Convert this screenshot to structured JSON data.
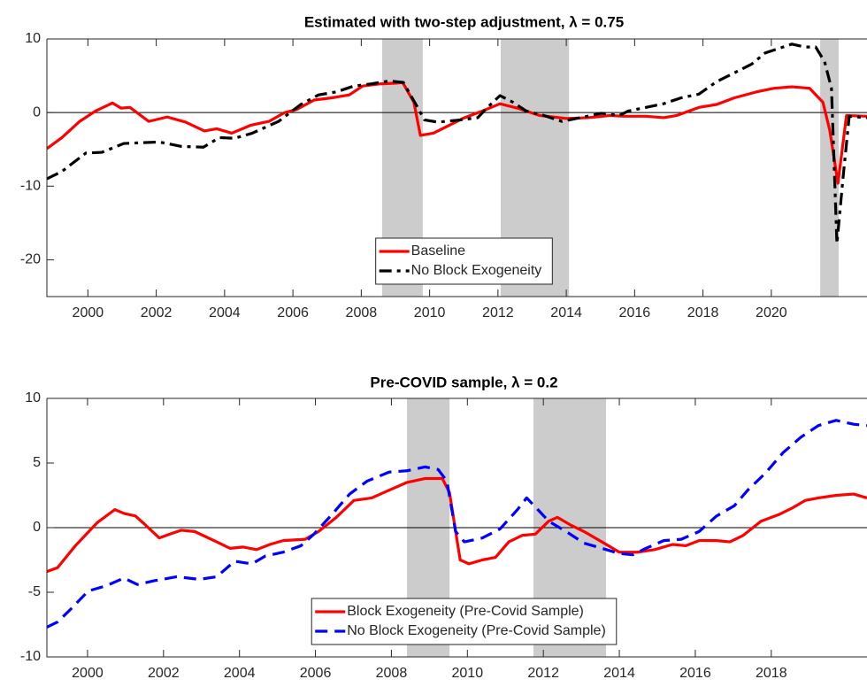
{
  "chart_data": [
    {
      "type": "line",
      "title": "Estimated with two-step adjustment,  λ = 0.75",
      "xlim": [
        1998.8,
        2022.8
      ],
      "xticks": [
        2000,
        2002,
        2004,
        2006,
        2008,
        2010,
        2012,
        2014,
        2016,
        2018,
        2020
      ],
      "ylim": [
        -25,
        10
      ],
      "yticks": [
        -20,
        -10,
        0,
        10
      ],
      "shaded_regions": [
        [
          2008.61,
          2009.8
        ],
        [
          2012.08,
          2014.08
        ],
        [
          2021.43,
          2021.97
        ]
      ],
      "shade_color": "#cccccc",
      "zero_line": true,
      "legend": "lower center",
      "series": [
        {
          "name": "Baseline",
          "color": "#ff0000",
          "style": "solid",
          "x": [
            1998.8,
            1999.24,
            1999.76,
            2000.22,
            2000.72,
            2000.97,
            2001.23,
            2001.78,
            2002.32,
            2002.86,
            2003.41,
            2003.77,
            2004.21,
            2004.78,
            2005.3,
            2005.76,
            2006.1,
            2006.62,
            2007.14,
            2007.65,
            2008.04,
            2008.56,
            2009.03,
            2009.21,
            2009.54,
            2009.73,
            2010.11,
            2010.63,
            2011.02,
            2011.54,
            2012.06,
            2012.57,
            2013.22,
            2014.0,
            2014.64,
            2015.29,
            2015.68,
            2016.33,
            2016.85,
            2017.23,
            2017.88,
            2018.4,
            2018.92,
            2019.56,
            2020.08,
            2020.6,
            2021.12,
            2021.51,
            2021.71,
            2021.95,
            2022.2,
            2022.8
          ],
          "values": [
            -4.9,
            -3.4,
            -1.2,
            0.2,
            1.3,
            0.6,
            0.7,
            -1.2,
            -0.6,
            -1.3,
            -2.5,
            -2.2,
            -2.8,
            -1.7,
            -1.2,
            0,
            0.4,
            1.7,
            2.0,
            2.4,
            3.6,
            3.9,
            4.0,
            4.1,
            1.4,
            -3.1,
            -2.8,
            -1.6,
            -0.7,
            0.2,
            1.2,
            0.6,
            -0.4,
            -0.8,
            -0.7,
            -0.4,
            -0.5,
            -0.5,
            -0.7,
            -0.4,
            0.7,
            1.1,
            2.0,
            2.8,
            3.3,
            3.5,
            3.3,
            1.4,
            -2.4,
            -9.6,
            -0.4,
            -0.5
          ]
        },
        {
          "name": "No Block Exogeneity",
          "color": "#000000",
          "style": "dashdot",
          "x": [
            1998.8,
            1999.24,
            1999.94,
            2000.41,
            2001.05,
            2001.57,
            2002.09,
            2002.74,
            2003.38,
            2003.85,
            2004.29,
            2004.81,
            2005.58,
            2006.23,
            2006.75,
            2007.27,
            2007.78,
            2008.3,
            2008.82,
            2009.23,
            2009.6,
            2009.85,
            2010.24,
            2010.89,
            2011.41,
            2011.67,
            2012.06,
            2012.44,
            2012.83,
            2013.35,
            2013.87,
            2014.52,
            2015.03,
            2015.55,
            2015.81,
            2016.33,
            2016.85,
            2017.36,
            2017.88,
            2018.4,
            2018.92,
            2019.43,
            2019.82,
            2020.21,
            2020.6,
            2020.99,
            2021.3,
            2021.56,
            2021.76,
            2021.92,
            2022.1,
            2022.28,
            2022.8
          ],
          "values": [
            -9,
            -8,
            -5.5,
            -5.4,
            -4.2,
            -4.1,
            -4.0,
            -4.6,
            -4.7,
            -3.4,
            -3.5,
            -2.8,
            -1.2,
            1.1,
            2.4,
            2.8,
            3.6,
            3.9,
            4.3,
            4.1,
            1.1,
            -1.0,
            -1.3,
            -1.0,
            -0.7,
            0.6,
            2.3,
            1.4,
            0.2,
            -0.4,
            -1.2,
            -0.6,
            -0.1,
            -0.4,
            0.2,
            0.7,
            1.2,
            2.0,
            2.5,
            4.2,
            5.4,
            6.6,
            8.1,
            8.7,
            9.3,
            8.9,
            8.9,
            6.9,
            3.3,
            -17.8,
            -8.8,
            -0.5,
            -0.7
          ]
        }
      ]
    },
    {
      "type": "line",
      "title": "Pre-COVID sample,  λ = 0.2",
      "xlim": [
        1998.93,
        2020.52
      ],
      "xticks": [
        2000,
        2002,
        2004,
        2006,
        2008,
        2010,
        2012,
        2014,
        2016,
        2018
      ],
      "ylim": [
        -10,
        10
      ],
      "yticks": [
        -10,
        -5,
        0,
        5,
        10
      ],
      "shaded_regions": [
        [
          2008.41,
          2009.53
        ],
        [
          2011.74,
          2013.65
        ]
      ],
      "shade_color": "#cccccc",
      "zero_line": true,
      "legend": "lower center",
      "series": [
        {
          "name": "Block Exogeneity (Pre-Covid Sample)",
          "color": "#ff0000",
          "style": "solid",
          "x": [
            1998.93,
            1999.21,
            1999.68,
            2000.26,
            2000.72,
            2000.96,
            2001.26,
            2001.49,
            2001.89,
            2002.17,
            2002.47,
            2002.82,
            2003.4,
            2003.75,
            2004.1,
            2004.45,
            2004.8,
            2005.15,
            2005.73,
            2006.08,
            2006.55,
            2007.01,
            2007.48,
            2007.94,
            2008.41,
            2008.88,
            2009.34,
            2009.53,
            2009.81,
            2010.04,
            2010.39,
            2010.74,
            2011.09,
            2011.44,
            2011.79,
            2012.14,
            2012.37,
            2012.72,
            2013.07,
            2013.54,
            2014.0,
            2014.47,
            2014.93,
            2015.4,
            2015.75,
            2016.1,
            2016.56,
            2016.91,
            2017.26,
            2017.73,
            2018.19,
            2018.54,
            2018.89,
            2019.24,
            2019.71,
            2020.17,
            2020.52
          ],
          "values": [
            -3.4,
            -3.1,
            -1.4,
            0.4,
            1.4,
            1.1,
            0.9,
            0.3,
            -0.8,
            -0.5,
            -0.2,
            -0.3,
            -1.1,
            -1.6,
            -1.5,
            -1.7,
            -1.3,
            -1.0,
            -0.9,
            -0.3,
            0.8,
            2.1,
            2.3,
            2.9,
            3.5,
            3.8,
            3.8,
            2.7,
            -2.5,
            -2.8,
            -2.5,
            -2.3,
            -1.1,
            -0.6,
            -0.5,
            0.5,
            0.8,
            0.2,
            -0.3,
            -1.1,
            -1.9,
            -1.9,
            -1.7,
            -1.3,
            -1.4,
            -1.0,
            -1.0,
            -1.1,
            -0.6,
            0.5,
            1.0,
            1.5,
            2.1,
            2.3,
            2.5,
            2.6,
            2.3
          ]
        },
        {
          "name": "No Block Exogeneity (Pre-Covid Sample)",
          "color": "#0000ff",
          "style": "dashed",
          "x": [
            1998.93,
            1999.21,
            1999.56,
            2000.02,
            2000.49,
            2000.96,
            2001.31,
            2001.77,
            2002.35,
            2002.94,
            2003.4,
            2003.87,
            2004.33,
            2004.68,
            2005.15,
            2005.62,
            2005.96,
            2006.43,
            2006.9,
            2007.36,
            2007.94,
            2008.41,
            2008.88,
            2009.23,
            2009.46,
            2009.69,
            2009.92,
            2010.39,
            2010.86,
            2011.32,
            2011.56,
            2011.79,
            2012.14,
            2012.6,
            2013.07,
            2013.54,
            2014.0,
            2014.35,
            2014.7,
            2015.17,
            2015.63,
            2016.1,
            2016.56,
            2017.03,
            2017.38,
            2017.84,
            2018.31,
            2018.78,
            2019.24,
            2019.71,
            2020.17,
            2020.52
          ],
          "values": [
            -7.7,
            -7.3,
            -6.3,
            -4.9,
            -4.5,
            -3.9,
            -4.4,
            -4.1,
            -3.8,
            -4.0,
            -3.8,
            -2.6,
            -2.8,
            -2.2,
            -1.9,
            -1.4,
            -0.5,
            1.0,
            2.6,
            3.6,
            4.3,
            4.4,
            4.7,
            4.5,
            3.6,
            -0.3,
            -1.1,
            -0.8,
            -0.1,
            1.4,
            2.3,
            1.6,
            0.5,
            -0.3,
            -1.2,
            -1.6,
            -2.0,
            -2.1,
            -1.6,
            -1.0,
            -0.9,
            -0.3,
            0.9,
            1.7,
            2.9,
            4.2,
            5.8,
            7.0,
            7.9,
            8.3,
            8.0,
            7.9
          ]
        }
      ]
    }
  ]
}
